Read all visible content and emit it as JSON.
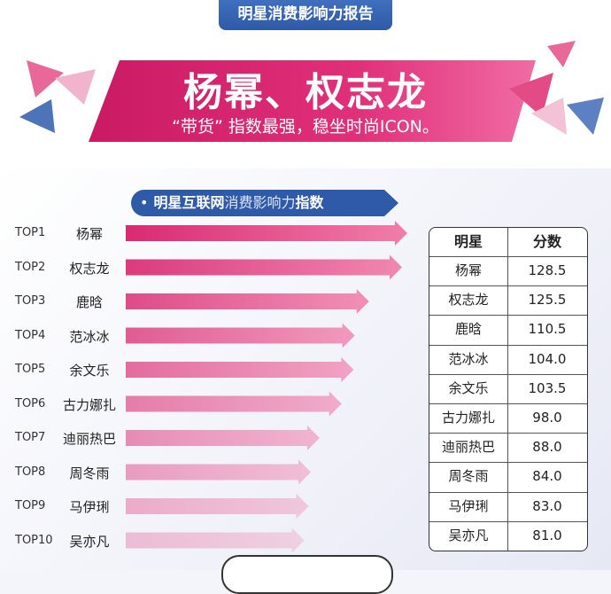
{
  "header": {
    "report_title": "明星消费影响力报告"
  },
  "banner": {
    "title": "杨幂、权志龙",
    "subtitle": "“带货” 指数最强，稳坐时尚ICON。"
  },
  "section": {
    "bullet": "•",
    "part1": "明星互联网",
    "part2": "消费影响力",
    "part3": "指数"
  },
  "colors": {
    "accent_pink": "#e1347a",
    "bar_light": "#f7bcd3",
    "navy": "#2e5aa8"
  },
  "chart_data": {
    "type": "bar",
    "orientation": "horizontal",
    "ranks": [
      "TOP1",
      "TOP2",
      "TOP3",
      "TOP4",
      "TOP5",
      "TOP6",
      "TOP7",
      "TOP8",
      "TOP9",
      "TOP10"
    ],
    "categories": [
      "杨幂",
      "权志龙",
      "鹿晗",
      "范冰冰",
      "余文乐",
      "古力娜扎",
      "迪丽热巴",
      "周冬雨",
      "马伊琍",
      "吴亦凡"
    ],
    "values": [
      128.5,
      125.5,
      110.5,
      104.0,
      103.5,
      98.0,
      88.0,
      84.0,
      83.0,
      81.0
    ],
    "value_labels": [
      "128.5",
      "125.5",
      "110.5",
      "104.0",
      "103.5",
      "98.0",
      "88.0",
      "84.0",
      "83.0",
      "81.0"
    ],
    "table_headers": [
      "明星",
      "分数"
    ]
  }
}
